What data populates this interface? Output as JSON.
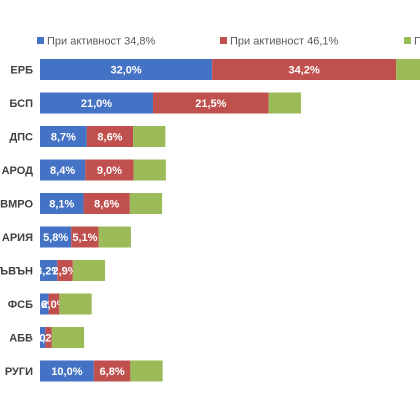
{
  "chart_data": {
    "type": "bar",
    "orientation": "horizontal",
    "stacked": true,
    "value_format": "percent_comma",
    "categories": [
      "ГЕРБ",
      "БСП",
      "ДПС",
      "ОБЕДИНЕНИ ПАТРИОТИ / НАРОД",
      "ВМРО",
      "АЛТЕРНАТИВА ЗА БЪЛГАРИЯ",
      "ВЪН",
      "НФСБ",
      "АБВ",
      "ДРУГИ"
    ],
    "category_labels_visible": [
      "ЕРБ",
      "БСП",
      "ДПС",
      "АРОД",
      "ВМРО",
      "АРИЯ",
      "ЪВЪН",
      "ФСБ",
      "АБВ",
      "РУГИ"
    ],
    "series": [
      {
        "name": "При активност 34,8%",
        "values": [
          32.0,
          21.0,
          8.7,
          8.4,
          8.1,
          5.8,
          3.2,
          1.6,
          1.0,
          10.0
        ]
      },
      {
        "name": "При активност 46,1%",
        "values": [
          34.2,
          21.5,
          8.6,
          9.0,
          8.6,
          5.1,
          2.9,
          2.0,
          1.2,
          6.8
        ]
      },
      {
        "name": "П",
        "values": [
          6,
          6,
          6,
          6,
          6,
          6,
          6,
          6,
          6,
          6
        ]
      }
    ],
    "series_colors": [
      "#4472C4",
      "#C0504D",
      "#9BBB59"
    ],
    "legend": {
      "position": "top",
      "labels": [
        "При активност 34,8%",
        "При активност 46,1%",
        "П"
      ]
    },
    "grid": false
  }
}
